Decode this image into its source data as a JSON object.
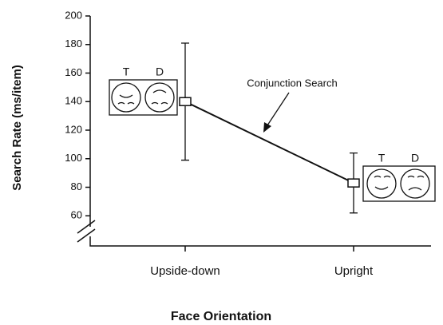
{
  "chart_data": {
    "type": "line",
    "y_label": "Search Rate (ms/item)",
    "x_label": "Face Orientation",
    "categories": [
      "Upside-down",
      "Upright"
    ],
    "values": [
      140,
      83
    ],
    "errors": [
      41,
      21
    ],
    "color": "#111111",
    "ylim": [
      40,
      200
    ],
    "yticks": [
      60,
      80,
      100,
      120,
      140,
      160,
      180,
      200
    ],
    "annotation": "Conjunction Search",
    "icons": [
      {
        "labels": [
          "T",
          "D"
        ]
      },
      {
        "labels": [
          "T",
          "D"
        ]
      }
    ]
  }
}
